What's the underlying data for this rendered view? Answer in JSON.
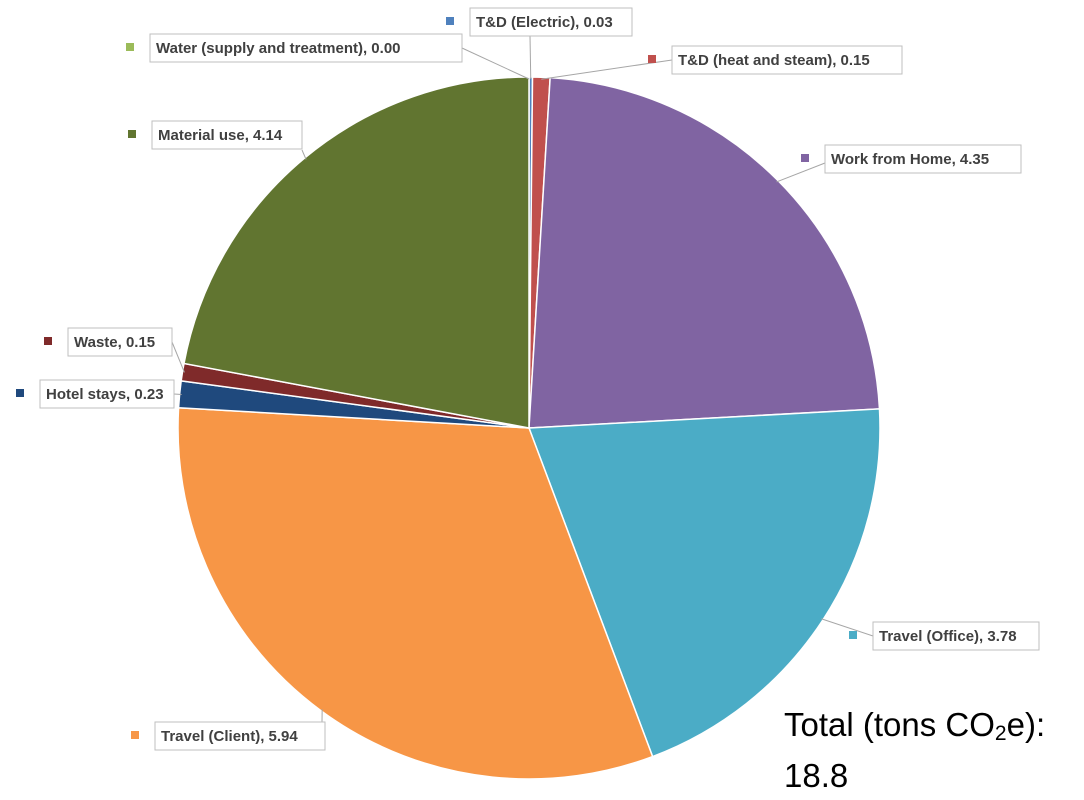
{
  "chart_data": {
    "type": "pie",
    "title": "",
    "slices": [
      {
        "label": "T&D (Electric)",
        "value": 0.03,
        "display": "0.03",
        "color": "#4f81bd"
      },
      {
        "label": "T&D (heat and steam)",
        "value": 0.15,
        "display": "0.15",
        "color": "#c0504d"
      },
      {
        "label": "Work from Home",
        "value": 4.35,
        "display": "4.35",
        "color": "#8064a2"
      },
      {
        "label": "Travel (Office)",
        "value": 3.78,
        "display": "3.78",
        "color": "#4bacc6"
      },
      {
        "label": "Travel (Client)",
        "value": 5.94,
        "display": "5.94",
        "color": "#f79646"
      },
      {
        "label": "Hotel stays",
        "value": 0.23,
        "display": "0.23",
        "color": "#1f497d"
      },
      {
        "label": "Waste",
        "value": 0.15,
        "display": "0.15",
        "color": "#7f2a2a"
      },
      {
        "label": "Material use",
        "value": 4.14,
        "display": "4.14",
        "color": "#617530"
      },
      {
        "label": "Water (supply and treatment)",
        "value": 0.0,
        "display": "0.00",
        "color": "#9bbb59"
      }
    ],
    "total": {
      "prefix": "Total (tons CO",
      "subscript": "2",
      "suffix": "e):",
      "value": "18.8"
    }
  }
}
